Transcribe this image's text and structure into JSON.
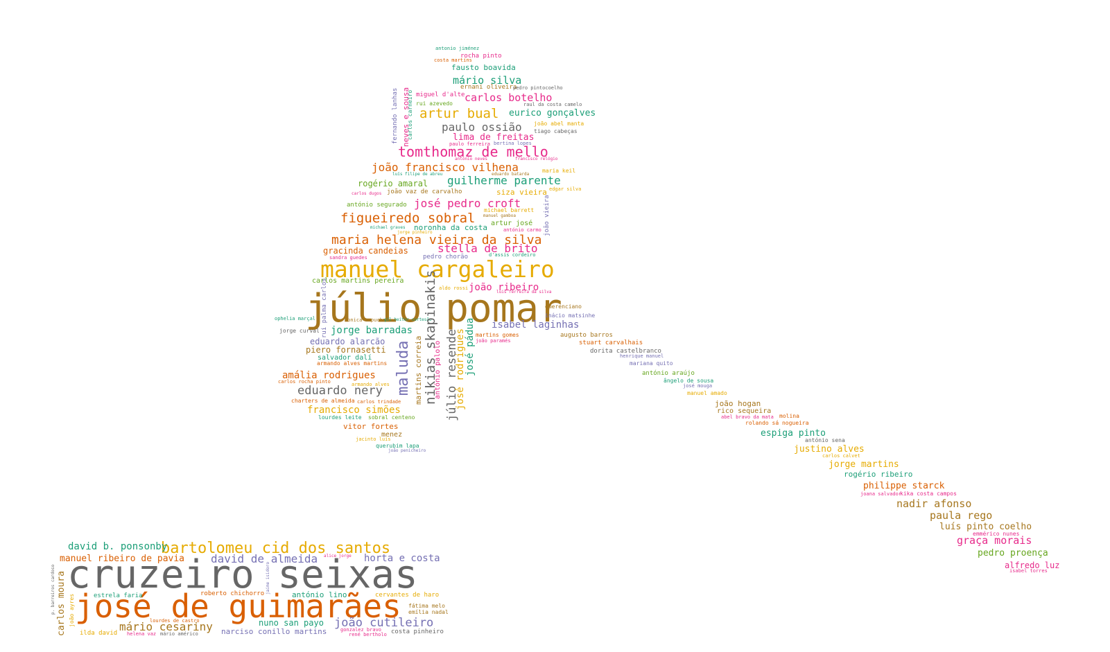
{
  "palette": {
    "gray": "#666666",
    "orange": "#d95f02",
    "gold": "#e6ab02",
    "teal": "#1b9e77",
    "purple": "#7570b3",
    "pink": "#e7298a",
    "olive": "#a6761d",
    "green": "#66a61e"
  },
  "words": [
    {
      "t": "júlio pomar",
      "c": "olive"
    },
    {
      "t": "manuel cargaleiro",
      "c": "gold"
    },
    {
      "t": "maria helena vieira da silva",
      "c": "orange"
    },
    {
      "t": "tomthomaz de mello",
      "c": "pink"
    },
    {
      "t": "figueiredo sobral",
      "c": "orange"
    },
    {
      "t": "josé pedro croft",
      "c": "pink"
    },
    {
      "t": "guilherme parente",
      "c": "teal"
    },
    {
      "t": "joão francisco vilhena",
      "c": "orange"
    },
    {
      "t": "artur bual",
      "c": "gold"
    },
    {
      "t": "paulo ossião",
      "c": "gray"
    },
    {
      "t": "carlos botelho",
      "c": "pink"
    },
    {
      "t": "mário silva",
      "c": "teal"
    },
    {
      "t": "eurico gonçalves",
      "c": "teal"
    },
    {
      "t": "lima de freitas",
      "c": "pink"
    },
    {
      "t": "fausto boavida",
      "c": "teal"
    },
    {
      "t": "rocha pinto",
      "c": "pink"
    },
    {
      "t": "antonio jiménez",
      "c": "teal"
    },
    {
      "t": "costa martins",
      "c": "orange"
    },
    {
      "t": "ernani oliveira",
      "c": "olive"
    },
    {
      "t": "miguel d'alte",
      "c": "pink"
    },
    {
      "t": "rui azevedo",
      "c": "green"
    },
    {
      "t": "pedro pintocoelho",
      "c": "gray"
    },
    {
      "t": "raul da costa camelo",
      "c": "gray"
    },
    {
      "t": "joão abel manta",
      "c": "gold"
    },
    {
      "t": "tiago cabeças",
      "c": "gray"
    },
    {
      "t": "paulo ferreira",
      "c": "pink"
    },
    {
      "t": "bertina lopes",
      "c": "purple"
    },
    {
      "t": "rogério amaral",
      "c": "green"
    },
    {
      "t": "siza vieira",
      "c": "gold"
    },
    {
      "t": "joão vaz de carvalho",
      "c": "olive"
    },
    {
      "t": "maria keil",
      "c": "gold"
    },
    {
      "t": "antónio segurado",
      "c": "green"
    },
    {
      "t": "michael barrett",
      "c": "gold"
    },
    {
      "t": "artur josé",
      "c": "green"
    },
    {
      "t": "noronha da costa",
      "c": "teal"
    },
    {
      "t": "stella de brito",
      "c": "pink"
    },
    {
      "t": "gracinda candeias",
      "c": "orange"
    },
    {
      "t": "pedro chorão",
      "c": "purple"
    },
    {
      "t": "sandra guedes",
      "c": "pink"
    },
    {
      "t": "carlos martins pereira",
      "c": "green"
    },
    {
      "t": "joão ribeiro",
      "c": "pink"
    },
    {
      "t": "isabel laginhas",
      "c": "purple"
    },
    {
      "t": "emerenciano",
      "c": "olive"
    },
    {
      "t": "inácio matsinhe",
      "c": "purple"
    },
    {
      "t": "jorge barradas",
      "c": "teal"
    },
    {
      "t": "eduardo alarcão",
      "c": "purple"
    },
    {
      "t": "piero fornasetti",
      "c": "olive"
    },
    {
      "t": "salvador dalí",
      "c": "teal"
    },
    {
      "t": "armando alves martins",
      "c": "orange"
    },
    {
      "t": "amália rodrigues",
      "c": "orange"
    },
    {
      "t": "eduardo nery",
      "c": "gray"
    },
    {
      "t": "charters de almeida",
      "c": "orange"
    },
    {
      "t": "francisco simões",
      "c": "gold"
    },
    {
      "t": "lourdes leite",
      "c": "teal"
    },
    {
      "t": "sobral centeno",
      "c": "green"
    },
    {
      "t": "vitor fortes",
      "c": "orange"
    },
    {
      "t": "menez",
      "c": "olive"
    },
    {
      "t": "querubim lapa",
      "c": "teal"
    },
    {
      "t": "joão penicheiro",
      "c": "purple"
    },
    {
      "t": "martins gomes",
      "c": "orange"
    },
    {
      "t": "joão paramés",
      "c": "pink"
    },
    {
      "t": "augusto barros",
      "c": "olive"
    },
    {
      "t": "stuart carvalhais",
      "c": "orange"
    },
    {
      "t": "dorita castelbranco",
      "c": "gray"
    },
    {
      "t": "henrique manuel",
      "c": "purple"
    },
    {
      "t": "mariana quito",
      "c": "purple"
    },
    {
      "t": "antónio araújo",
      "c": "green"
    },
    {
      "t": "ângelo de sousa",
      "c": "teal"
    },
    {
      "t": "josé mouga",
      "c": "purple"
    },
    {
      "t": "manuel amado",
      "c": "gold"
    },
    {
      "t": "joão hogan",
      "c": "olive"
    },
    {
      "t": "rico sequeira",
      "c": "olive"
    },
    {
      "t": "abel bravo da mata",
      "c": "pink"
    },
    {
      "t": "molina",
      "c": "orange"
    },
    {
      "t": "rolando sá nogueira",
      "c": "orange"
    },
    {
      "t": "espiga pinto",
      "c": "teal"
    },
    {
      "t": "antónio sena",
      "c": "gray"
    },
    {
      "t": "justino alves",
      "c": "gold"
    },
    {
      "t": "carlos calvet",
      "c": "gold"
    },
    {
      "t": "jorge martins",
      "c": "gold"
    },
    {
      "t": "rogério ribeiro",
      "c": "teal"
    },
    {
      "t": "philippe starck",
      "c": "orange"
    },
    {
      "t": "joana salvador",
      "c": "pink"
    },
    {
      "t": "kika costa campos",
      "c": "pink"
    },
    {
      "t": "nadir afonso",
      "c": "olive"
    },
    {
      "t": "paula rego",
      "c": "olive"
    },
    {
      "t": "luís pinto coelho",
      "c": "olive"
    },
    {
      "t": "emmérico nunes",
      "c": "pink"
    },
    {
      "t": "graça morais",
      "c": "pink"
    },
    {
      "t": "pedro proença",
      "c": "green"
    },
    {
      "t": "alfredo luz",
      "c": "pink"
    },
    {
      "t": "isabel torres",
      "c": "pink"
    },
    {
      "t": "ophelia marçal",
      "c": "teal"
    },
    {
      "t": "jorge curval",
      "c": "gray"
    },
    {
      "t": "carlos rocha pinto",
      "c": "orange"
    },
    {
      "t": "armando alves",
      "c": "gold"
    },
    {
      "t": "carlos trindade",
      "c": "orange"
    },
    {
      "t": "jacinto luís",
      "c": "gold"
    },
    {
      "t": "monica capucho",
      "c": "olive"
    },
    {
      "t": "gil heitor cortesão",
      "c": "teal"
    },
    {
      "t": "aldo rossi",
      "c": "gold"
    },
    {
      "t": "luis ferreira da silva",
      "c": "pink"
    },
    {
      "t": "d'assis cordeiro",
      "c": "teal"
    },
    {
      "t": "edgar silva",
      "c": "gold"
    },
    {
      "t": "antónio carmo",
      "c": "pink"
    },
    {
      "t": "manuel gamboa",
      "c": "olive"
    },
    {
      "t": "michael graves",
      "c": "teal"
    },
    {
      "t": "jorge pinheiro",
      "c": "gold"
    },
    {
      "t": "carlos dugos",
      "c": "pink"
    },
    {
      "t": "luís filipe de abreu",
      "c": "teal"
    },
    {
      "t": "eduardo batarda",
      "c": "olive"
    },
    {
      "t": "antónio neves",
      "c": "pink"
    },
    {
      "t": "francisco relógio",
      "c": "pink"
    },
    {
      "t": "júlio resende",
      "c": "gray"
    },
    {
      "t": "nikias skapinakis",
      "c": "gray"
    },
    {
      "t": "maluda",
      "c": "purple"
    },
    {
      "t": "josé rodrigues",
      "c": "gold"
    },
    {
      "t": "josé pádua",
      "c": "teal"
    },
    {
      "t": "martins correia",
      "c": "olive"
    },
    {
      "t": "antónio palolo",
      "c": "pink"
    },
    {
      "t": "rui palma carlos",
      "c": "purple"
    },
    {
      "t": "fernando lanhas",
      "c": "purple"
    },
    {
      "t": "neves e sousa",
      "c": "pink"
    },
    {
      "t": "carlos carneiro",
      "c": "teal"
    },
    {
      "t": "joão vieira",
      "c": "purple"
    },
    {
      "t": "cruzeiro seixas",
      "c": "gray"
    },
    {
      "t": "josé de guimarães",
      "c": "orange"
    },
    {
      "t": "bartolomeu cid dos santos",
      "c": "gold"
    },
    {
      "t": "david b. ponsonby",
      "c": "teal"
    },
    {
      "t": "manuel ribeiro de pavia",
      "c": "orange"
    },
    {
      "t": "david de almeida",
      "c": "purple"
    },
    {
      "t": "horta e costa",
      "c": "purple"
    },
    {
      "t": "mário cesariny",
      "c": "olive"
    },
    {
      "t": "joão cutileiro",
      "c": "purple"
    },
    {
      "t": "nuno san payo",
      "c": "teal"
    },
    {
      "t": "narciso conillo martins",
      "c": "purple"
    },
    {
      "t": "costa pinheiro",
      "c": "gray"
    },
    {
      "t": "roberto chichorro",
      "c": "orange"
    },
    {
      "t": "antónio lino",
      "c": "teal"
    },
    {
      "t": "cervantes de haro",
      "c": "gold"
    },
    {
      "t": "fátima melo",
      "c": "olive"
    },
    {
      "t": "emília nadal",
      "c": "olive"
    },
    {
      "t": "estrela faria",
      "c": "teal"
    },
    {
      "t": "lourdes de castro",
      "c": "orange"
    },
    {
      "t": "ilda david",
      "c": "gold"
    },
    {
      "t": "helena vaz",
      "c": "pink"
    },
    {
      "t": "mário américo",
      "c": "gray"
    },
    {
      "t": "gonzalez bravo",
      "c": "pink"
    },
    {
      "t": "rené bertholo",
      "c": "pink"
    },
    {
      "t": "carlos moura",
      "c": "olive"
    },
    {
      "t": "joão ayres",
      "c": "gold"
    },
    {
      "t": "p. barreiros cardoso",
      "c": "gray"
    },
    {
      "t": "jaime isidoro",
      "c": "purple"
    },
    {
      "t": "alice jorge",
      "c": "pink"
    }
  ]
}
